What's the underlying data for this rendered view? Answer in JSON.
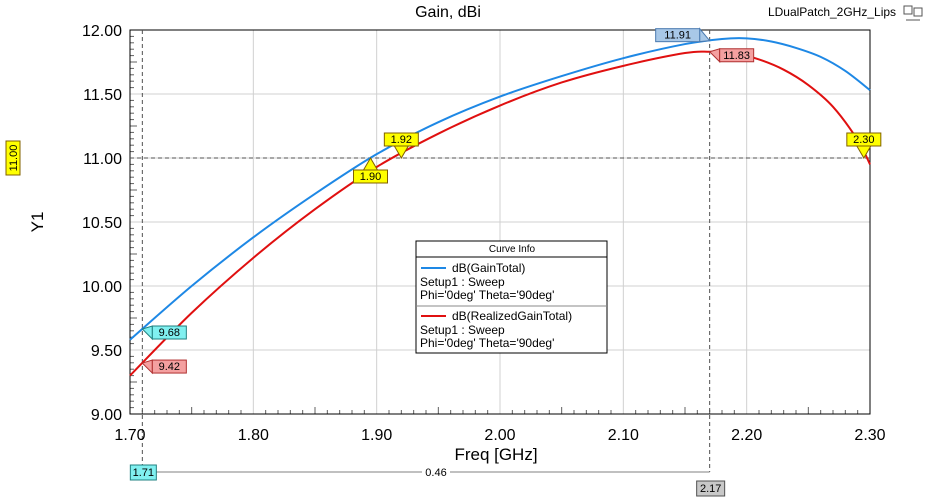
{
  "chart_data": {
    "type": "line",
    "title": "Gain, dBi",
    "project": "LDualPatch_2GHz_Lips",
    "xlabel": "Freq [GHz]",
    "ylabel": "Y1",
    "xlim": [
      1.7,
      2.3
    ],
    "ylim": [
      9.0,
      12.0
    ],
    "x_ticks": [
      "1.70",
      "1.80",
      "1.90",
      "2.00",
      "2.10",
      "2.20",
      "2.30"
    ],
    "y_ticks": [
      "9.00",
      "9.50",
      "10.00",
      "10.50",
      "11.00",
      "11.50",
      "12.00"
    ],
    "grid": true,
    "legend": {
      "title": "Curve Info",
      "placement": "center",
      "entries": [
        {
          "name": "dB(GainTotal)",
          "lines": [
            "Setup1 : Sweep",
            "Phi='0deg' Theta='90deg'"
          ],
          "color": "#1e88e5"
        },
        {
          "name": "dB(RealizedGainTotal)",
          "lines": [
            "Setup1 : Sweep",
            "Phi='0deg' Theta='90deg'"
          ],
          "color": "#e01010"
        }
      ]
    },
    "series": [
      {
        "name": "dB(GainTotal)",
        "color": "#1e88e5",
        "x": [
          1.7,
          1.75,
          1.8,
          1.85,
          1.9,
          1.95,
          2.0,
          2.05,
          2.1,
          2.15,
          2.18,
          2.2,
          2.22,
          2.24,
          2.26,
          2.28,
          2.3
        ],
        "y": [
          9.58,
          10.0,
          10.38,
          10.72,
          11.03,
          11.28,
          11.48,
          11.64,
          11.78,
          11.89,
          11.93,
          11.935,
          11.91,
          11.86,
          11.79,
          11.68,
          11.53
        ]
      },
      {
        "name": "dB(RealizedGainTotal)",
        "color": "#e01010",
        "x": [
          1.7,
          1.75,
          1.8,
          1.85,
          1.9,
          1.95,
          2.0,
          2.05,
          2.1,
          2.15,
          2.17,
          2.19,
          2.21,
          2.23,
          2.25,
          2.27,
          2.29,
          2.3
        ],
        "y": [
          9.3,
          9.79,
          10.22,
          10.6,
          10.93,
          11.19,
          11.41,
          11.59,
          11.72,
          11.82,
          11.83,
          11.82,
          11.77,
          11.69,
          11.57,
          11.4,
          11.14,
          10.95
        ]
      }
    ],
    "markers": [
      {
        "label": "11.91",
        "x": 2.17,
        "series": 0,
        "fill": "#a8c8e8",
        "stroke": "#4a7ab0",
        "side": "left"
      },
      {
        "label": "11.83",
        "x": 2.17,
        "series": 1,
        "fill": "#f4a0a0",
        "stroke": "#b03030",
        "side": "right"
      },
      {
        "label": "1.92",
        "x": 1.92,
        "y": 11.0,
        "fill": "#ffff00",
        "stroke": "#806000",
        "side": "up"
      },
      {
        "label": "1.90",
        "x": 1.895,
        "y": 11.0,
        "fill": "#ffff00",
        "stroke": "#806000",
        "side": "down"
      },
      {
        "label": "9.68",
        "x": 1.71,
        "series": 0,
        "fill": "#80f0f0",
        "stroke": "#208080",
        "side": "right"
      },
      {
        "label": "9.42",
        "x": 1.71,
        "series": 1,
        "fill": "#f4a0a0",
        "stroke": "#b03030",
        "side": "right"
      },
      {
        "label": "2.30",
        "x": 2.295,
        "y": 11.0,
        "fill": "#ffff00",
        "stroke": "#806000",
        "side": "up"
      }
    ],
    "hline": {
      "y": 11.0,
      "label": "11.00"
    },
    "vlines": [
      1.71,
      2.17
    ],
    "delta": {
      "x1": 1.71,
      "x2": 2.17,
      "x1_label": "1.71",
      "x2_label": "2.17",
      "label": "0.46"
    }
  }
}
